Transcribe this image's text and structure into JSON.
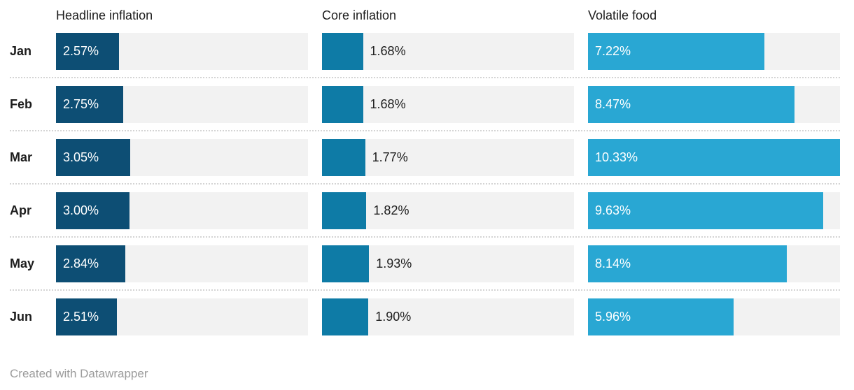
{
  "chart_data": {
    "type": "bar",
    "orientation": "horizontal",
    "categories": [
      "Jan",
      "Feb",
      "Mar",
      "Apr",
      "May",
      "Jun"
    ],
    "series": [
      {
        "name": "Headline inflation",
        "values": [
          2.57,
          2.75,
          3.05,
          3.0,
          2.84,
          2.51
        ],
        "labels": [
          "2.57%",
          "2.75%",
          "3.05%",
          "3.00%",
          "2.84%",
          "2.51%"
        ],
        "color": "#0d4e74",
        "label_position": "inside",
        "label_color": "#ffffff"
      },
      {
        "name": "Core inflation",
        "values": [
          1.68,
          1.68,
          1.77,
          1.82,
          1.93,
          1.9
        ],
        "labels": [
          "1.68%",
          "1.68%",
          "1.77%",
          "1.82%",
          "1.93%",
          "1.90%"
        ],
        "color": "#0e7ba6",
        "label_position": "outside",
        "label_color": "#1d1d1d"
      },
      {
        "name": "Volatile food",
        "values": [
          7.22,
          8.47,
          10.33,
          9.63,
          8.14,
          5.96
        ],
        "labels": [
          "7.22%",
          "8.47%",
          "10.33%",
          "9.63%",
          "8.14%",
          "5.96%"
        ],
        "color": "#29a7d3",
        "label_position": "inside",
        "label_color": "#ffffff"
      }
    ],
    "max_value": 10.33,
    "xlim": [
      0,
      10.33
    ],
    "track_color": "#f2f2f2",
    "grid": false,
    "legend_position": "none",
    "title": "",
    "xlabel": "",
    "ylabel": ""
  },
  "footer": {
    "credit": "Created with Datawrapper"
  }
}
